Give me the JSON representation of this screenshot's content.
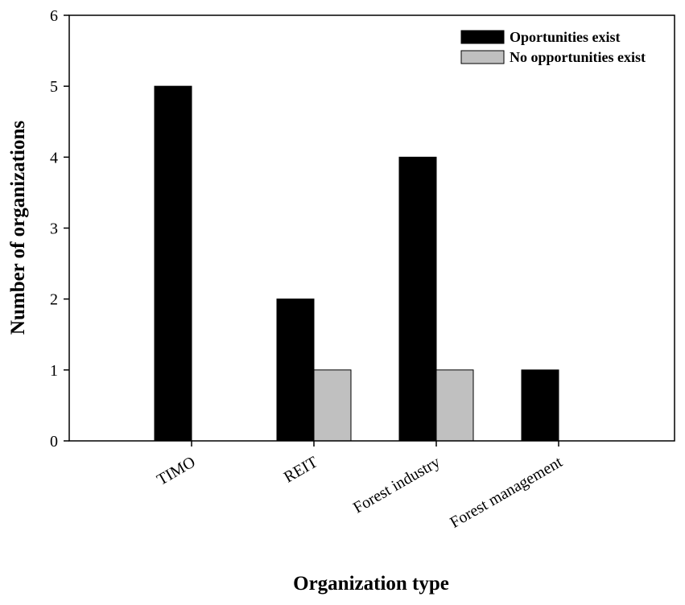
{
  "chart_data": {
    "type": "bar",
    "categories": [
      "TIMO",
      "REIT",
      "Forest industry",
      "Forest management"
    ],
    "series": [
      {
        "name": "Oportunities exist",
        "values": [
          5,
          2,
          4,
          1
        ],
        "color": "#000000"
      },
      {
        "name": "No opportunities exist",
        "values": [
          0,
          1,
          1,
          0
        ],
        "color": "#c0c0c0"
      }
    ],
    "title": "",
    "xlabel": "Organization type",
    "ylabel": "Number of organizations",
    "ylim": [
      0,
      6
    ],
    "yticks": [
      "0",
      "1",
      "2",
      "3",
      "4",
      "5",
      "6"
    ],
    "grid": false,
    "legend_position": "top-right"
  }
}
